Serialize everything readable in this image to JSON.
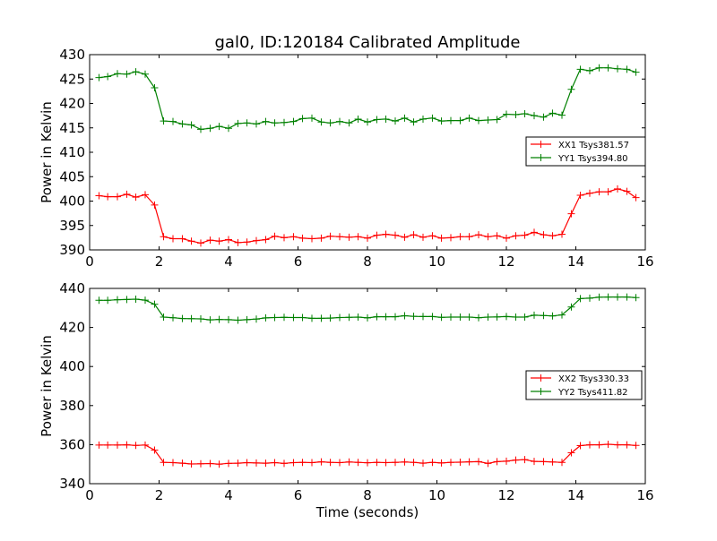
{
  "chart_data": [
    {
      "type": "line",
      "title": "gal0, ID:120184 Calibrated Amplitude",
      "xlabel": "",
      "ylabel": "Power in Kelvin",
      "xlim": [
        0,
        16
      ],
      "ylim": [
        390,
        430
      ],
      "xticks": [
        "0",
        "2",
        "4",
        "6",
        "8",
        "10",
        "12",
        "14",
        "16"
      ],
      "yticks": [
        "390",
        "395",
        "400",
        "405",
        "410",
        "415",
        "420",
        "425",
        "430"
      ],
      "grid": false,
      "legend_position": "right",
      "x": [
        0.27,
        0.52,
        0.8,
        1.07,
        1.33,
        1.6,
        1.87,
        2.13,
        2.4,
        2.67,
        2.93,
        3.2,
        3.47,
        3.73,
        4.0,
        4.27,
        4.53,
        4.8,
        5.07,
        5.33,
        5.6,
        5.87,
        6.13,
        6.4,
        6.67,
        6.93,
        7.2,
        7.47,
        7.73,
        8.0,
        8.27,
        8.53,
        8.8,
        9.07,
        9.33,
        9.6,
        9.87,
        10.13,
        10.4,
        10.67,
        10.93,
        11.2,
        11.47,
        11.73,
        12.0,
        12.27,
        12.53,
        12.8,
        13.07,
        13.33,
        13.6,
        13.87,
        14.13,
        14.4,
        14.67,
        14.93,
        15.2,
        15.47,
        15.73,
        15.95
      ],
      "series": [
        {
          "name": "XX1 Tsys381.57",
          "color": "#ff0000",
          "values": [
            401.1,
            400.9,
            400.9,
            401.4,
            400.8,
            401.3,
            399.2,
            392.7,
            392.3,
            392.3,
            391.8,
            391.4,
            392.0,
            391.8,
            392.1,
            391.5,
            391.6,
            391.9,
            392.1,
            392.8,
            392.5,
            392.7,
            392.4,
            392.3,
            392.4,
            392.8,
            392.7,
            392.6,
            392.7,
            392.4,
            393.0,
            393.2,
            393.0,
            392.6,
            393.1,
            392.6,
            392.9,
            392.4,
            392.5,
            392.7,
            392.7,
            393.1,
            392.7,
            392.9,
            392.4,
            392.9,
            393.0,
            393.6,
            393.1,
            392.9,
            393.2,
            397.4,
            401.2,
            401.6,
            401.9,
            401.9,
            402.5,
            402.0,
            400.7,
            null
          ]
        },
        {
          "name": "YY1 Tsys394.80",
          "color": "#008000",
          "values": [
            425.3,
            425.5,
            426.1,
            426.0,
            426.5,
            426.0,
            423.2,
            416.4,
            416.3,
            415.8,
            415.6,
            414.7,
            414.9,
            415.3,
            414.9,
            415.9,
            416.0,
            415.8,
            416.3,
            416.0,
            416.1,
            416.3,
            416.9,
            417.0,
            416.2,
            416.0,
            416.3,
            416.0,
            416.8,
            416.2,
            416.7,
            416.8,
            416.4,
            417.0,
            416.2,
            416.8,
            417.0,
            416.4,
            416.5,
            416.5,
            417.0,
            416.5,
            416.6,
            416.7,
            417.8,
            417.7,
            417.9,
            417.5,
            417.2,
            418.0,
            417.6,
            422.9,
            427.0,
            426.7,
            427.3,
            427.3,
            427.1,
            427.0,
            426.4,
            null
          ]
        }
      ]
    },
    {
      "type": "line",
      "title": "",
      "xlabel": "Time (seconds)",
      "ylabel": "Power in Kelvin",
      "xlim": [
        0,
        16
      ],
      "ylim": [
        340,
        440
      ],
      "xticks": [
        "0",
        "2",
        "4",
        "6",
        "8",
        "10",
        "12",
        "14",
        "16"
      ],
      "yticks": [
        "340",
        "360",
        "380",
        "400",
        "420",
        "440"
      ],
      "grid": false,
      "legend_position": "right",
      "x": [
        0.27,
        0.52,
        0.8,
        1.07,
        1.33,
        1.6,
        1.87,
        2.13,
        2.4,
        2.67,
        2.93,
        3.2,
        3.47,
        3.73,
        4.0,
        4.27,
        4.53,
        4.8,
        5.07,
        5.33,
        5.6,
        5.87,
        6.13,
        6.4,
        6.67,
        6.93,
        7.2,
        7.47,
        7.73,
        8.0,
        8.27,
        8.53,
        8.8,
        9.07,
        9.33,
        9.6,
        9.87,
        10.13,
        10.4,
        10.67,
        10.93,
        11.2,
        11.47,
        11.73,
        12.0,
        12.27,
        12.53,
        12.8,
        13.07,
        13.33,
        13.6,
        13.87,
        14.13,
        14.4,
        14.67,
        14.93,
        15.2,
        15.47,
        15.73,
        15.95
      ],
      "series": [
        {
          "name": "XX2 Tsys330.33",
          "color": "#ff0000",
          "values": [
            359.8,
            359.8,
            359.8,
            359.9,
            359.6,
            359.8,
            357.2,
            350.9,
            350.8,
            350.5,
            350.1,
            350.2,
            350.3,
            350.0,
            350.4,
            350.5,
            350.8,
            350.6,
            350.5,
            350.8,
            350.4,
            350.8,
            350.9,
            350.8,
            351.2,
            350.9,
            350.8,
            351.1,
            350.9,
            350.7,
            350.9,
            350.8,
            350.9,
            351.1,
            350.9,
            350.5,
            350.9,
            350.6,
            350.9,
            351.0,
            351.2,
            351.3,
            350.4,
            351.3,
            351.5,
            352.1,
            352.3,
            351.4,
            351.3,
            351.1,
            350.9,
            355.8,
            359.5,
            359.9,
            359.9,
            360.2,
            359.9,
            359.9,
            359.6,
            null
          ]
        },
        {
          "name": "YY2 Tsys411.82",
          "color": "#008000",
          "values": [
            433.9,
            433.9,
            434.2,
            434.3,
            434.5,
            434.0,
            431.9,
            425.3,
            425.0,
            424.6,
            424.5,
            424.4,
            423.9,
            424.1,
            424.0,
            423.7,
            424.0,
            424.3,
            424.9,
            425.1,
            425.2,
            425.1,
            425.1,
            424.7,
            424.7,
            424.8,
            425.1,
            425.2,
            425.3,
            424.9,
            425.5,
            425.5,
            425.5,
            426.0,
            425.7,
            425.6,
            425.6,
            425.2,
            425.3,
            425.3,
            425.3,
            425.0,
            425.3,
            425.4,
            425.6,
            425.3,
            425.3,
            426.3,
            426.1,
            425.9,
            426.4,
            430.5,
            434.8,
            435.0,
            435.5,
            435.6,
            435.6,
            435.6,
            435.3,
            null
          ]
        }
      ]
    }
  ]
}
